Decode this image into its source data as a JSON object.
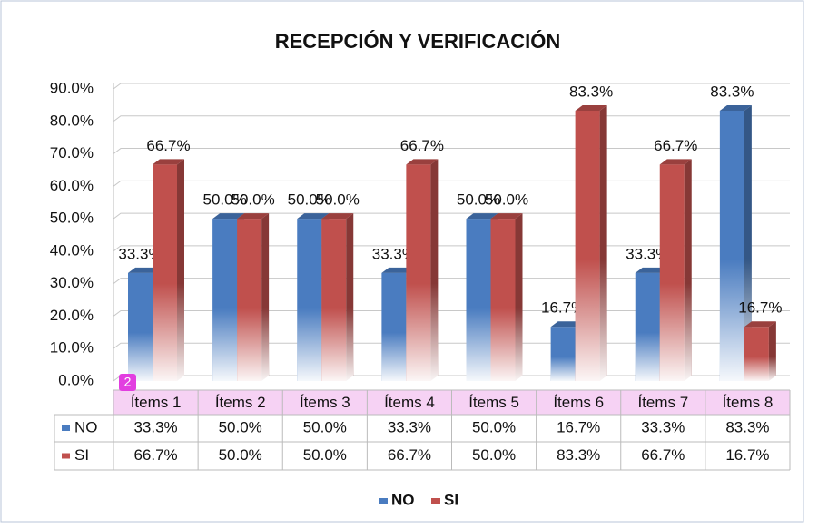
{
  "chart_data": {
    "type": "bar3d",
    "title": "RECEPCIÓN Y VERIFICACIÓN",
    "categories": [
      "Ítems 1",
      "Ítems 2",
      "Ítems 3",
      "Ítems 4",
      "Ítems 5",
      "Ítems 6",
      "Ítems 7",
      "Ítems 8"
    ],
    "series": [
      {
        "name": "NO",
        "color": "#4a7cc0",
        "values": [
          33.3,
          50,
          50,
          33.3,
          50,
          16.7,
          33.3,
          83.3
        ],
        "value_labels": [
          "33.3%",
          "50.0%",
          "50.0%",
          "33.3%",
          "50.0%",
          "16.7%",
          "33.3%",
          "83.3%"
        ]
      },
      {
        "name": "SI",
        "color": "#c0504d",
        "values": [
          66.7,
          50,
          50,
          66.7,
          50,
          83.3,
          66.7,
          16.7
        ],
        "value_labels": [
          "66.7%",
          "50.0%",
          "50.0%",
          "66.7%",
          "50.0%",
          "83.3%",
          "66.7%",
          "16.7%"
        ]
      }
    ],
    "ylim": [
      0,
      90
    ],
    "yticks": [
      {
        "value": 0,
        "label": "0.0%"
      },
      {
        "value": 10,
        "label": "10.0%"
      },
      {
        "value": 20,
        "label": "20.0%"
      },
      {
        "value": 30,
        "label": "30.0%"
      },
      {
        "value": 40,
        "label": "40.0%"
      },
      {
        "value": 50,
        "label": "50.0%"
      },
      {
        "value": 60,
        "label": "60.0%"
      },
      {
        "value": 70,
        "label": "70.0%"
      },
      {
        "value": 80,
        "label": "80.0%"
      },
      {
        "value": 90,
        "label": "90.0%"
      }
    ],
    "grid": true,
    "legend": "bottom",
    "data_table": true
  },
  "badge": "2"
}
